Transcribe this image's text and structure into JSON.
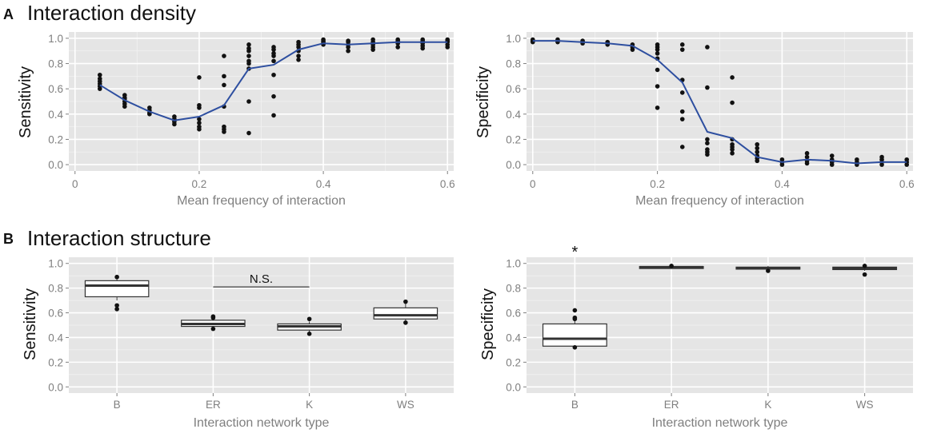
{
  "panels": {
    "A": {
      "letter": "A",
      "title": "Interaction density"
    },
    "B": {
      "letter": "B",
      "title": "Interaction structure"
    }
  },
  "colors": {
    "panel_bg": "#e5e5e5",
    "grid_major": "#ffffff",
    "points": "#111111",
    "smooth_line": "#2e4fa0",
    "box_fill": "#ffffff",
    "box_stroke": "#333333"
  },
  "chart_data": [
    {
      "id": "A-sensitivity",
      "type": "scatter",
      "xlabel": "Mean frequency of interaction",
      "ylabel": "Sensitivity",
      "xlim": [
        -0.01,
        0.61
      ],
      "ylim": [
        -0.05,
        1.05
      ],
      "xticks": [
        0,
        0.2,
        0.4,
        0.6
      ],
      "xtick_labels": [
        "0",
        "0.2",
        "0.4",
        "0.6"
      ],
      "yticks": [
        0,
        0.2,
        0.4,
        0.6,
        0.8,
        1.0
      ],
      "ytick_labels": [
        "0.0",
        "0.2",
        "0.4",
        "0.6",
        "0.8",
        "1.0"
      ],
      "grid": true,
      "points": [
        [
          0.04,
          0.6
        ],
        [
          0.04,
          0.62
        ],
        [
          0.04,
          0.64
        ],
        [
          0.04,
          0.66
        ],
        [
          0.04,
          0.68
        ],
        [
          0.04,
          0.71
        ],
        [
          0.08,
          0.46
        ],
        [
          0.08,
          0.48
        ],
        [
          0.08,
          0.5
        ],
        [
          0.08,
          0.52
        ],
        [
          0.08,
          0.53
        ],
        [
          0.08,
          0.55
        ],
        [
          0.12,
          0.4
        ],
        [
          0.12,
          0.41
        ],
        [
          0.12,
          0.43
        ],
        [
          0.12,
          0.45
        ],
        [
          0.16,
          0.32
        ],
        [
          0.16,
          0.34
        ],
        [
          0.16,
          0.36
        ],
        [
          0.16,
          0.38
        ],
        [
          0.2,
          0.28
        ],
        [
          0.2,
          0.3
        ],
        [
          0.2,
          0.33
        ],
        [
          0.2,
          0.36
        ],
        [
          0.2,
          0.45
        ],
        [
          0.2,
          0.47
        ],
        [
          0.2,
          0.69
        ],
        [
          0.24,
          0.26
        ],
        [
          0.24,
          0.28
        ],
        [
          0.24,
          0.3
        ],
        [
          0.24,
          0.46
        ],
        [
          0.24,
          0.63
        ],
        [
          0.24,
          0.7
        ],
        [
          0.24,
          0.86
        ],
        [
          0.28,
          0.25
        ],
        [
          0.28,
          0.5
        ],
        [
          0.28,
          0.76
        ],
        [
          0.28,
          0.8
        ],
        [
          0.28,
          0.82
        ],
        [
          0.28,
          0.86
        ],
        [
          0.28,
          0.9
        ],
        [
          0.28,
          0.92
        ],
        [
          0.28,
          0.95
        ],
        [
          0.32,
          0.39
        ],
        [
          0.32,
          0.54
        ],
        [
          0.32,
          0.71
        ],
        [
          0.32,
          0.82
        ],
        [
          0.32,
          0.86
        ],
        [
          0.32,
          0.88
        ],
        [
          0.32,
          0.91
        ],
        [
          0.32,
          0.93
        ],
        [
          0.36,
          0.83
        ],
        [
          0.36,
          0.86
        ],
        [
          0.36,
          0.9
        ],
        [
          0.36,
          0.93
        ],
        [
          0.36,
          0.95
        ],
        [
          0.36,
          0.97
        ],
        [
          0.4,
          0.95
        ],
        [
          0.4,
          0.96
        ],
        [
          0.4,
          0.97
        ],
        [
          0.4,
          0.98
        ],
        [
          0.4,
          0.99
        ],
        [
          0.44,
          0.9
        ],
        [
          0.44,
          0.93
        ],
        [
          0.44,
          0.95
        ],
        [
          0.44,
          0.97
        ],
        [
          0.44,
          0.98
        ],
        [
          0.48,
          0.91
        ],
        [
          0.48,
          0.93
        ],
        [
          0.48,
          0.95
        ],
        [
          0.48,
          0.97
        ],
        [
          0.48,
          0.99
        ],
        [
          0.52,
          0.93
        ],
        [
          0.52,
          0.96
        ],
        [
          0.52,
          0.97
        ],
        [
          0.52,
          0.98
        ],
        [
          0.52,
          0.99
        ],
        [
          0.56,
          0.92
        ],
        [
          0.56,
          0.94
        ],
        [
          0.56,
          0.96
        ],
        [
          0.56,
          0.98
        ],
        [
          0.56,
          0.99
        ],
        [
          0.6,
          0.93
        ],
        [
          0.6,
          0.95
        ],
        [
          0.6,
          0.97
        ],
        [
          0.6,
          0.98
        ],
        [
          0.6,
          0.99
        ]
      ],
      "smooth": [
        [
          0.04,
          0.63
        ],
        [
          0.08,
          0.51
        ],
        [
          0.12,
          0.42
        ],
        [
          0.16,
          0.35
        ],
        [
          0.2,
          0.38
        ],
        [
          0.24,
          0.47
        ],
        [
          0.28,
          0.76
        ],
        [
          0.32,
          0.79
        ],
        [
          0.36,
          0.91
        ],
        [
          0.4,
          0.96
        ],
        [
          0.44,
          0.95
        ],
        [
          0.48,
          0.96
        ],
        [
          0.52,
          0.97
        ],
        [
          0.56,
          0.97
        ],
        [
          0.6,
          0.97
        ]
      ]
    },
    {
      "id": "A-specificity",
      "type": "scatter",
      "xlabel": "Mean frequency of interaction",
      "ylabel": "Specificity",
      "xlim": [
        -0.01,
        0.61
      ],
      "ylim": [
        -0.05,
        1.05
      ],
      "xticks": [
        0,
        0.2,
        0.4,
        0.6
      ],
      "xtick_labels": [
        "0",
        "0.2",
        "0.4",
        "0.6"
      ],
      "yticks": [
        0,
        0.2,
        0.4,
        0.6,
        0.8,
        1.0
      ],
      "ytick_labels": [
        "0.0",
        "0.2",
        "0.4",
        "0.6",
        "0.8",
        "1.0"
      ],
      "grid": true,
      "points": [
        [
          0.0,
          0.97
        ],
        [
          0.0,
          0.98
        ],
        [
          0.0,
          0.99
        ],
        [
          0.04,
          0.97
        ],
        [
          0.04,
          0.98
        ],
        [
          0.04,
          0.99
        ],
        [
          0.08,
          0.96
        ],
        [
          0.08,
          0.97
        ],
        [
          0.08,
          0.98
        ],
        [
          0.12,
          0.95
        ],
        [
          0.12,
          0.96
        ],
        [
          0.12,
          0.97
        ],
        [
          0.16,
          0.91
        ],
        [
          0.16,
          0.93
        ],
        [
          0.16,
          0.95
        ],
        [
          0.2,
          0.45
        ],
        [
          0.2,
          0.62
        ],
        [
          0.2,
          0.75
        ],
        [
          0.2,
          0.84
        ],
        [
          0.2,
          0.88
        ],
        [
          0.2,
          0.91
        ],
        [
          0.2,
          0.93
        ],
        [
          0.2,
          0.95
        ],
        [
          0.24,
          0.14
        ],
        [
          0.24,
          0.36
        ],
        [
          0.24,
          0.42
        ],
        [
          0.24,
          0.57
        ],
        [
          0.24,
          0.67
        ],
        [
          0.24,
          0.91
        ],
        [
          0.24,
          0.95
        ],
        [
          0.28,
          0.08
        ],
        [
          0.28,
          0.1
        ],
        [
          0.28,
          0.12
        ],
        [
          0.28,
          0.17
        ],
        [
          0.28,
          0.2
        ],
        [
          0.28,
          0.61
        ],
        [
          0.28,
          0.93
        ],
        [
          0.32,
          0.09
        ],
        [
          0.32,
          0.12
        ],
        [
          0.32,
          0.14
        ],
        [
          0.32,
          0.16
        ],
        [
          0.32,
          0.2
        ],
        [
          0.32,
          0.49
        ],
        [
          0.32,
          0.69
        ],
        [
          0.36,
          0.03
        ],
        [
          0.36,
          0.05
        ],
        [
          0.36,
          0.07
        ],
        [
          0.36,
          0.1
        ],
        [
          0.36,
          0.13
        ],
        [
          0.36,
          0.16
        ],
        [
          0.4,
          0.0
        ],
        [
          0.4,
          0.02
        ],
        [
          0.4,
          0.04
        ],
        [
          0.44,
          0.01
        ],
        [
          0.44,
          0.03
        ],
        [
          0.44,
          0.06
        ],
        [
          0.44,
          0.09
        ],
        [
          0.48,
          0.0
        ],
        [
          0.48,
          0.02
        ],
        [
          0.48,
          0.04
        ],
        [
          0.48,
          0.07
        ],
        [
          0.52,
          0.0
        ],
        [
          0.52,
          0.02
        ],
        [
          0.52,
          0.04
        ],
        [
          0.56,
          0.0
        ],
        [
          0.56,
          0.02
        ],
        [
          0.56,
          0.04
        ],
        [
          0.56,
          0.06
        ],
        [
          0.6,
          0.0
        ],
        [
          0.6,
          0.02
        ],
        [
          0.6,
          0.04
        ]
      ],
      "smooth": [
        [
          0.0,
          0.98
        ],
        [
          0.04,
          0.98
        ],
        [
          0.08,
          0.97
        ],
        [
          0.12,
          0.96
        ],
        [
          0.16,
          0.94
        ],
        [
          0.2,
          0.83
        ],
        [
          0.24,
          0.65
        ],
        [
          0.28,
          0.26
        ],
        [
          0.32,
          0.21
        ],
        [
          0.36,
          0.06
        ],
        [
          0.4,
          0.02
        ],
        [
          0.44,
          0.04
        ],
        [
          0.48,
          0.03
        ],
        [
          0.52,
          0.01
        ],
        [
          0.56,
          0.02
        ],
        [
          0.6,
          0.02
        ]
      ]
    },
    {
      "id": "B-sensitivity",
      "type": "box",
      "xlabel": "Interaction network type",
      "ylabel": "Sensitivity",
      "categories": [
        "B",
        "ER",
        "K",
        "WS"
      ],
      "ylim": [
        -0.05,
        1.05
      ],
      "yticks": [
        0,
        0.2,
        0.4,
        0.6,
        0.8,
        1.0
      ],
      "ytick_labels": [
        "0.0",
        "0.2",
        "0.4",
        "0.6",
        "0.8",
        "1.0"
      ],
      "grid": true,
      "boxes": [
        {
          "q1": 0.73,
          "median": 0.82,
          "q3": 0.86,
          "min": 0.7,
          "max": 0.89,
          "points": [
            0.63,
            0.66,
            0.89
          ]
        },
        {
          "q1": 0.49,
          "median": 0.51,
          "q3": 0.54,
          "min": 0.47,
          "max": 0.56,
          "points": [
            0.47,
            0.56,
            0.57
          ]
        },
        {
          "q1": 0.46,
          "median": 0.49,
          "q3": 0.51,
          "min": 0.43,
          "max": 0.53,
          "points": [
            0.43,
            0.55
          ]
        },
        {
          "q1": 0.55,
          "median": 0.58,
          "q3": 0.64,
          "min": 0.53,
          "max": 0.68,
          "points": [
            0.52,
            0.69
          ]
        }
      ],
      "annotation": {
        "label": "N.S.",
        "from": "ER",
        "to": "K",
        "y": 0.81
      }
    },
    {
      "id": "B-specificity",
      "type": "box",
      "xlabel": "Interaction network type",
      "ylabel": "Specificity",
      "categories": [
        "B",
        "ER",
        "K",
        "WS"
      ],
      "ylim": [
        -0.05,
        1.05
      ],
      "yticks": [
        0,
        0.2,
        0.4,
        0.6,
        0.8,
        1.0
      ],
      "ytick_labels": [
        "0.0",
        "0.2",
        "0.4",
        "0.6",
        "0.8",
        "1.0"
      ],
      "grid": true,
      "boxes": [
        {
          "q1": 0.33,
          "median": 0.39,
          "q3": 0.51,
          "min": 0.32,
          "max": 0.56,
          "points": [
            0.32,
            0.55,
            0.56,
            0.62
          ]
        },
        {
          "q1": 0.965,
          "median": 0.97,
          "q3": 0.975,
          "min": 0.96,
          "max": 0.98,
          "points": [
            0.98
          ]
        },
        {
          "q1": 0.955,
          "median": 0.96,
          "q3": 0.97,
          "min": 0.94,
          "max": 0.98,
          "points": [
            0.94
          ]
        },
        {
          "q1": 0.95,
          "median": 0.96,
          "q3": 0.97,
          "min": 0.94,
          "max": 0.98,
          "points": [
            0.91,
            0.98
          ]
        }
      ],
      "star": {
        "label": "*",
        "category": "B"
      }
    }
  ]
}
